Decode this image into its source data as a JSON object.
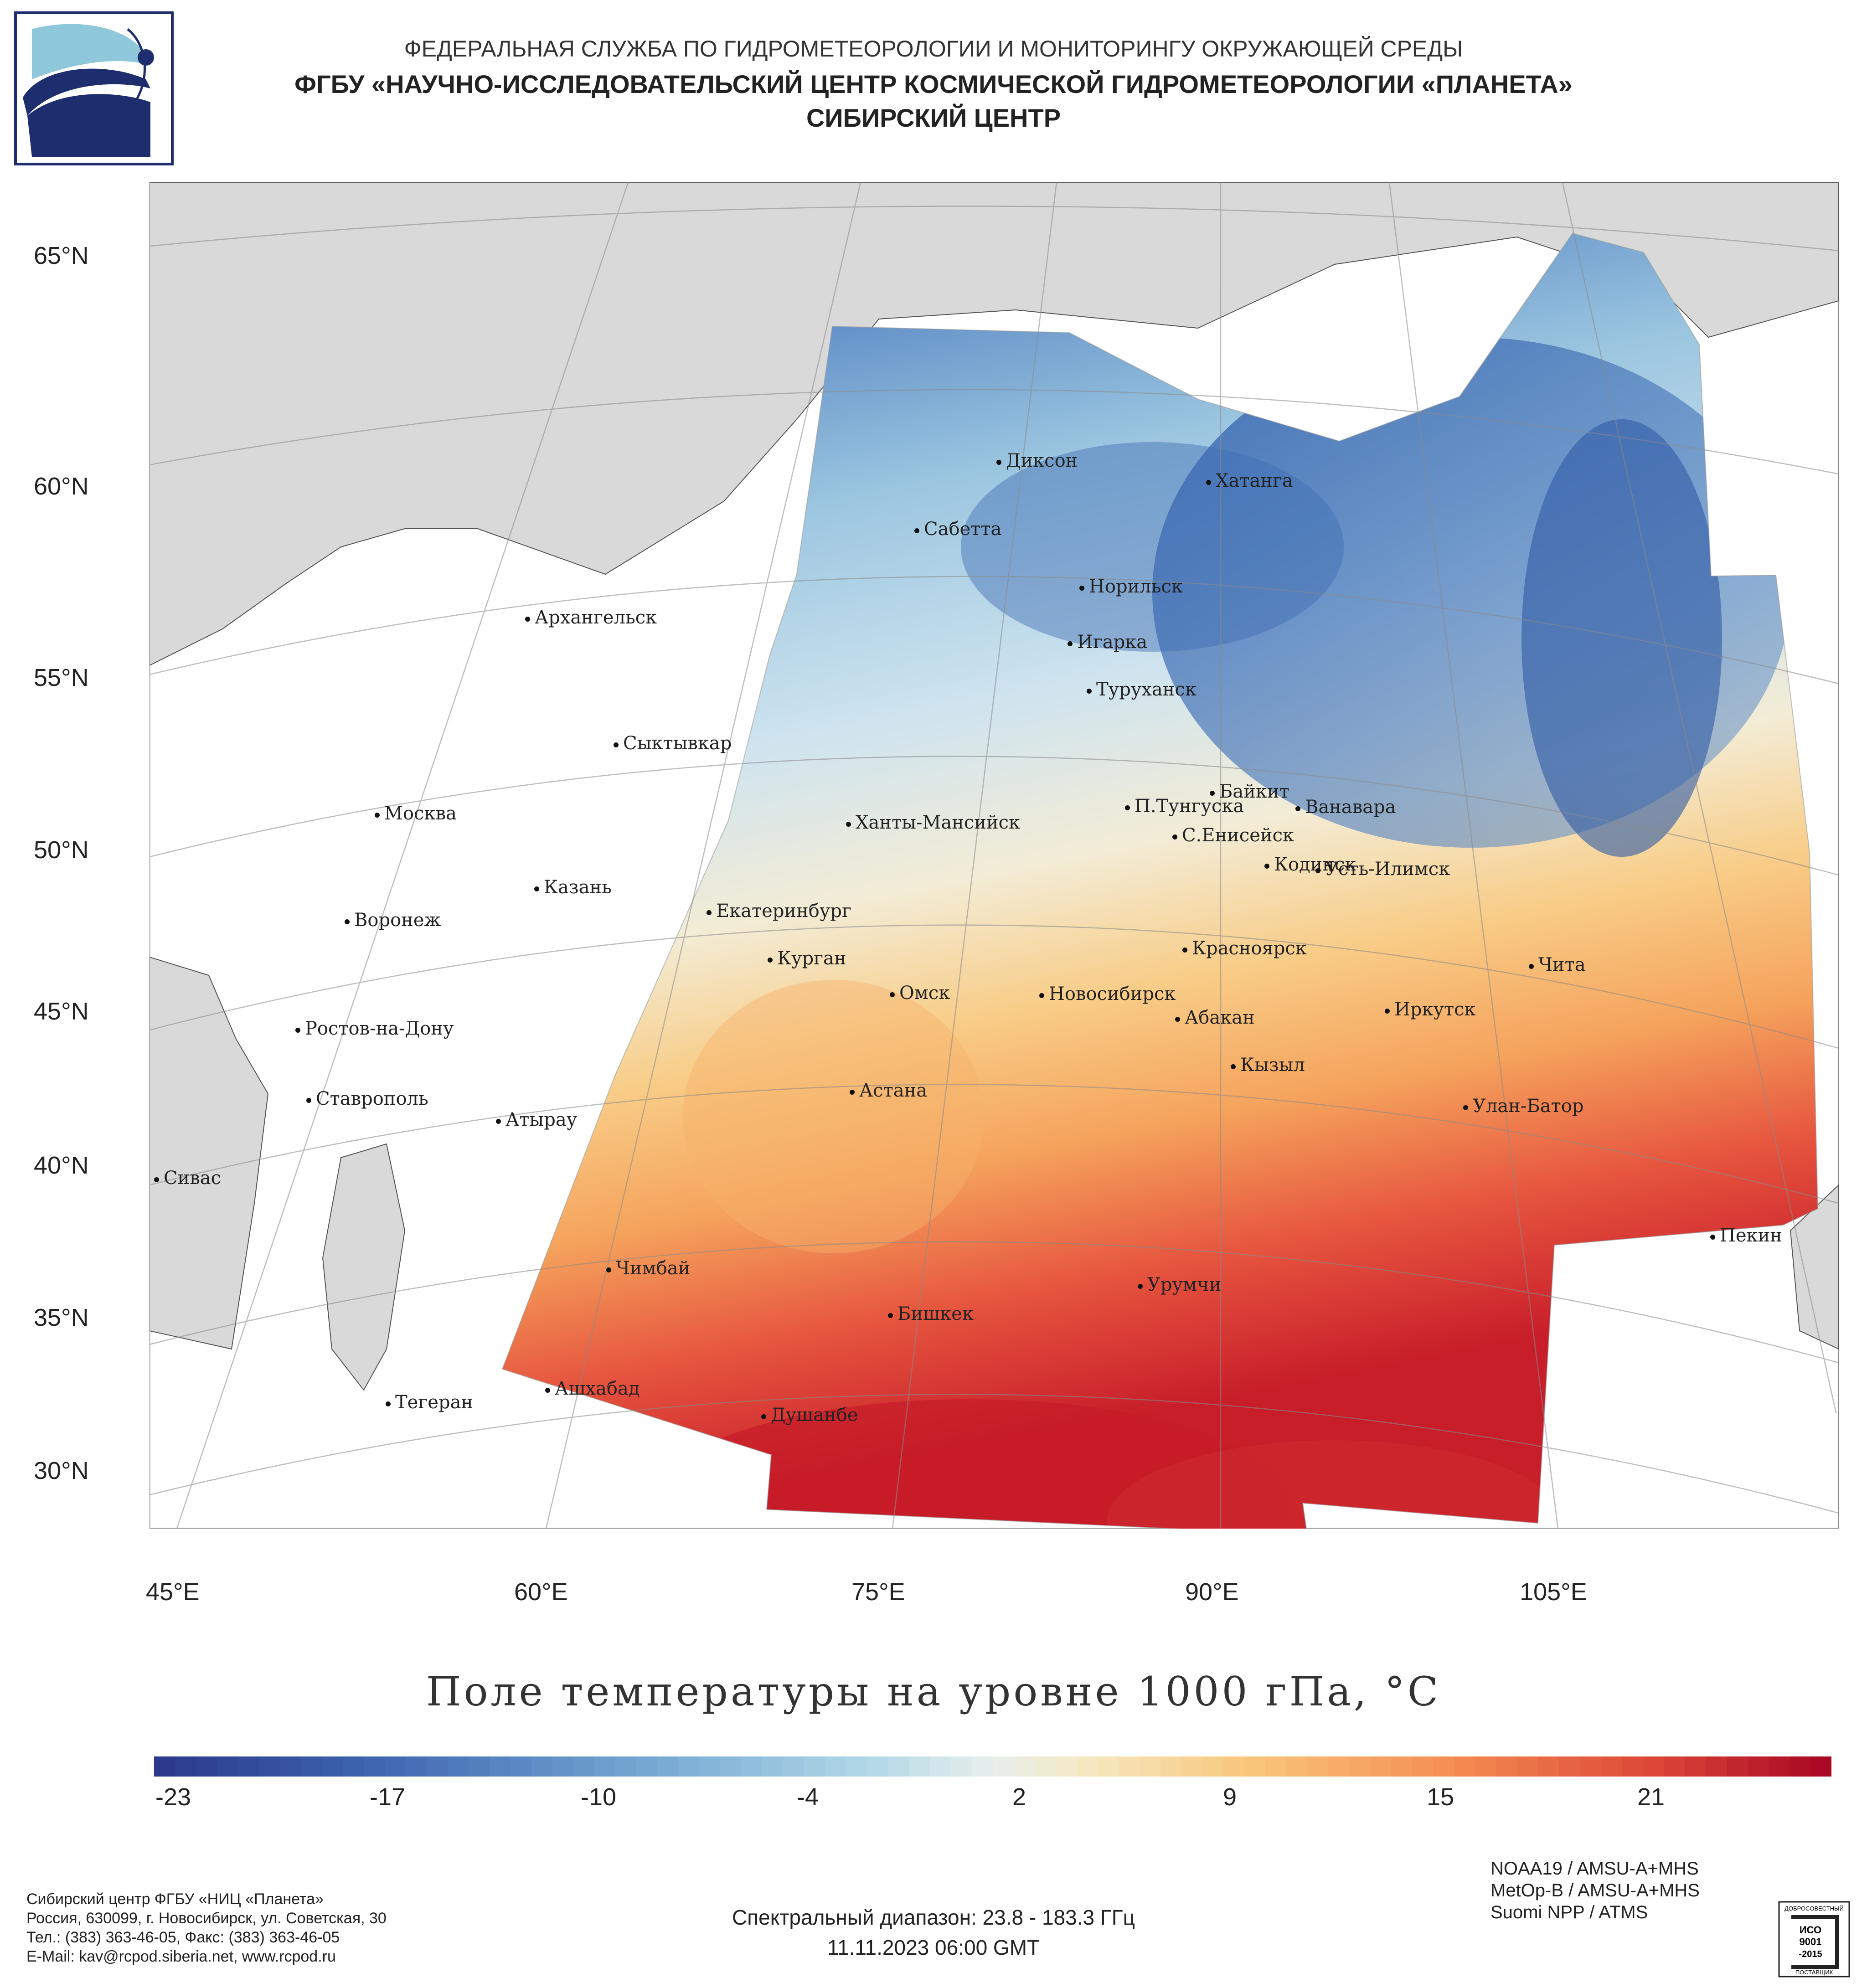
{
  "header": {
    "line1": "ФЕДЕРАЛЬНАЯ СЛУЖБА ПО ГИДРОМЕТЕОРОЛОГИИ И МОНИТОРИНГУ ОКРУЖАЮЩЕЙ СРЕДЫ",
    "line2": "ФГБУ «НАУЧНО-ИССЛЕДОВАТЕЛЬСКИЙ ЦЕНТР КОСМИЧЕСКОЙ ГИДРОМЕТЕОРОЛОГИИ «ПЛАНЕТА»",
    "line3": "СИБИРСКИЙ ЦЕНТР"
  },
  "map": {
    "lat_labels": [
      "65°N",
      "60°N",
      "55°N",
      "50°N",
      "45°N",
      "40°N",
      "35°N",
      "30°N"
    ],
    "lon_labels": [
      "45°E",
      "60°E",
      "75°E",
      "90°E",
      "105°E"
    ],
    "cities": [
      "Диксон",
      "Хатанга",
      "Сабетта",
      "Норильск",
      "Архангельск",
      "Игарка",
      "Туруханск",
      "Сыктывкар",
      "Байкит",
      "Москва",
      "П.Тунгуска",
      "Ванавара",
      "Ханты-Мансийск",
      "С.Енисейск",
      "Казань",
      "Кодинск",
      "Усть-Илимск",
      "Екатеринбург",
      "Воронеж",
      "Красноярск",
      "Курган",
      "Чита",
      "Омск",
      "Новосибирск",
      "Ростов-на-Дону",
      "Иркутск",
      "Абакан",
      "Кызыл",
      "Ставрополь",
      "Астана",
      "Улан-Батор",
      "Атырау",
      "Сивас",
      "Пекин",
      "Чимбай",
      "Урумчи",
      "Бишкек",
      "Ашхабад",
      "Тегеран",
      "Душанбе"
    ]
  },
  "title": "Поле температуры на уровне 1000 гПа, °С",
  "colorbar": {
    "ticks": [
      "-23",
      "-17",
      "-10",
      "-4",
      "2",
      "9",
      "15",
      "21"
    ],
    "min": -24,
    "max": 25
  },
  "footer": {
    "org_lines": [
      "Сибирский центр ФГБУ «НИЦ «Планета»",
      "Россия, 630099, г. Новосибирск, ул. Советская, 30",
      "Тел.: (383) 363-46-05, Факс: (383) 363-46-05",
      "E-Mail: kav@rcpod.siberia.net, www.rcpod.ru"
    ],
    "spectral": "Спектральный диапазон: 23.8 - 183.3 ГГц",
    "datetime": "11.11.2023 06:00 GMT",
    "sensors": [
      "NOAA19 / AMSU-A+MHS",
      "MetOp-B / AMSU-A+MHS",
      "Suomi NPP / ATMS"
    ],
    "iso_lines": [
      "ДОБРОСОВЕСТНЫЙ",
      "ИСО",
      "9001",
      "-2015",
      "ПОСТАВЩИК"
    ]
  },
  "colors": {
    "land": "#d9d9d9",
    "sea": "#ffffff",
    "cold": "#2f5fa8",
    "mid": "#e8f0ec",
    "warm": "#f7b45a",
    "hot": "#c81e2a"
  }
}
